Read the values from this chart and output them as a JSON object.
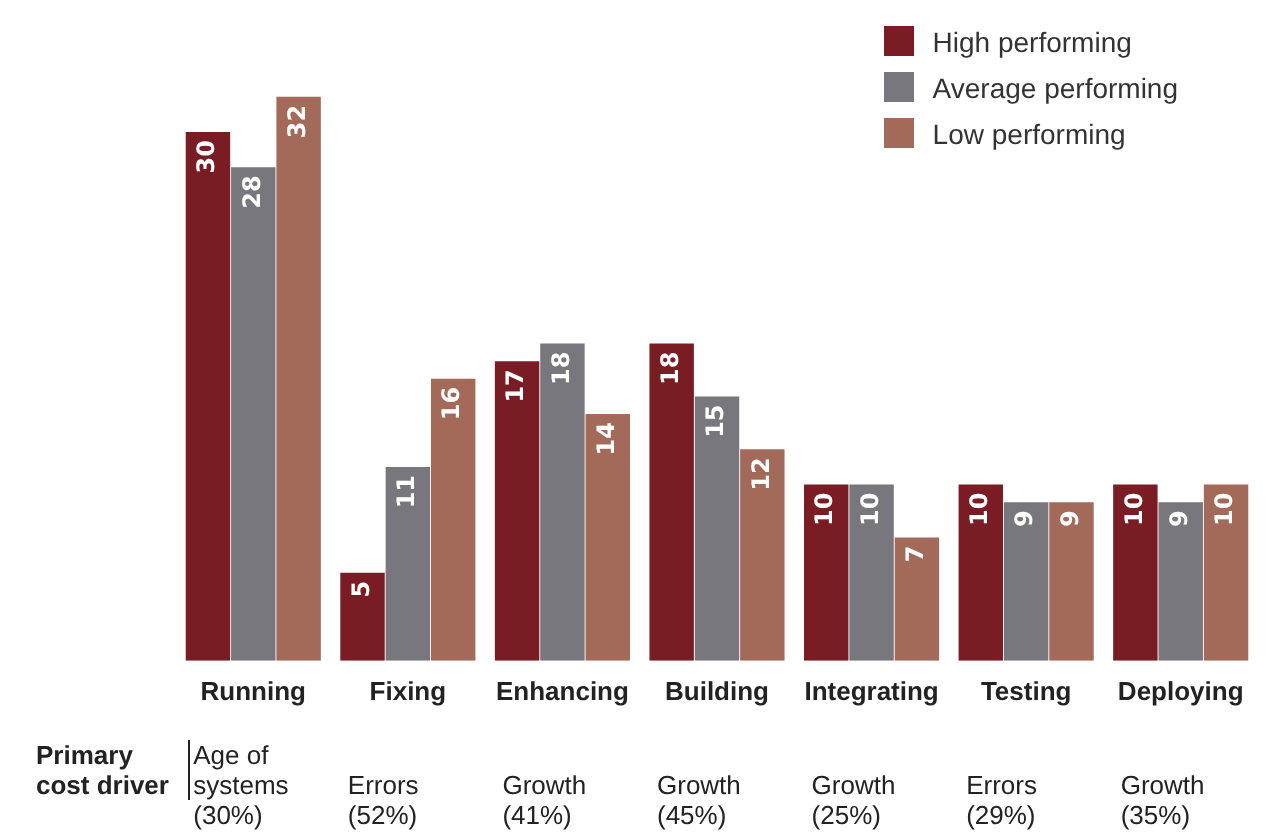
{
  "chart_data": {
    "type": "bar",
    "categories": [
      "Running",
      "Fixing",
      "Enhancing",
      "Building",
      "Integrating",
      "Testing",
      "Deploying"
    ],
    "series": [
      {
        "name": "High performing",
        "color": "#7a1c24",
        "values": [
          30,
          5,
          17,
          18,
          10,
          10,
          10
        ]
      },
      {
        "name": "Average performing",
        "color": "#77777d",
        "values": [
          28,
          11,
          18,
          15,
          10,
          9,
          9
        ]
      },
      {
        "name": "Low performing",
        "color": "#a36a5a",
        "values": [
          32,
          16,
          14,
          12,
          7,
          9,
          10
        ]
      }
    ],
    "data_labels": true,
    "legend": "top right",
    "annotations": [
      "Primary cost driver",
      "Age of systems (30%)",
      "Errors (52%)",
      "Growth (41%)",
      "Growth (45%)",
      "Growth (25%)",
      "Errors (29%)",
      "Growth (35%)"
    ]
  }
}
